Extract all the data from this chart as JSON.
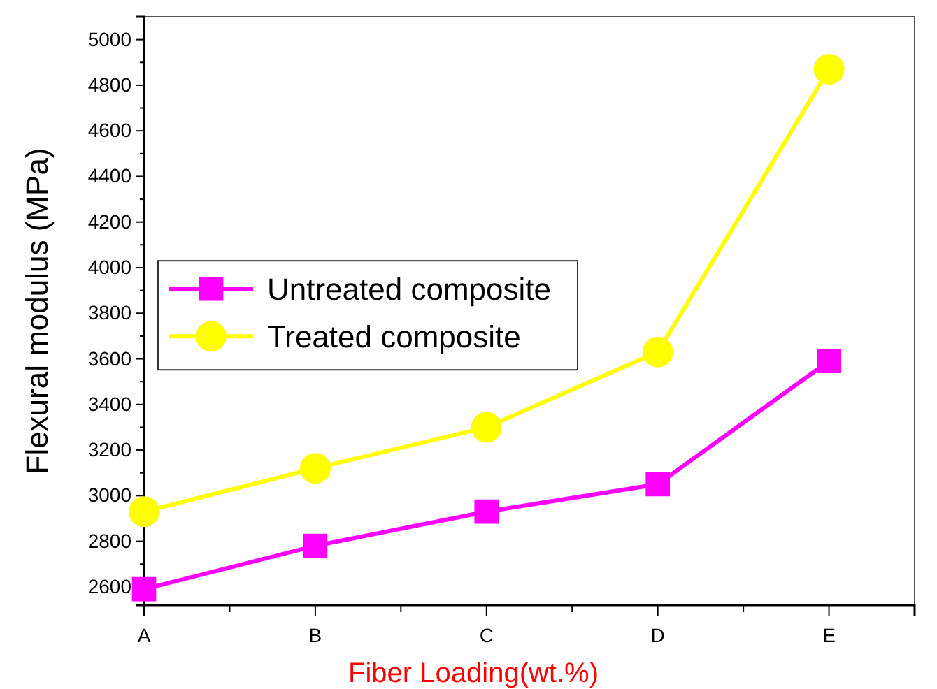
{
  "chart_data": {
    "type": "line",
    "xlabel": "Fiber Loading(wt.%)",
    "ylabel": "Flexural modulus (MPa)",
    "categories": [
      "A",
      "B",
      "C",
      "D",
      "E"
    ],
    "series": [
      {
        "name": "Untreated composite",
        "color": "#ff00ff",
        "marker": "square",
        "values": [
          2590,
          2780,
          2930,
          3050,
          3590
        ]
      },
      {
        "name": "Treated composite",
        "color": "#ffff00",
        "marker": "circle",
        "values": [
          2930,
          3120,
          3300,
          3630,
          4870
        ]
      }
    ],
    "ylim": [
      2520,
      5100
    ],
    "yticks": [
      2600,
      2800,
      3000,
      3200,
      3400,
      3600,
      3800,
      4000,
      4200,
      4400,
      4600,
      4800,
      5000
    ],
    "legend": "left",
    "grid": false
  }
}
